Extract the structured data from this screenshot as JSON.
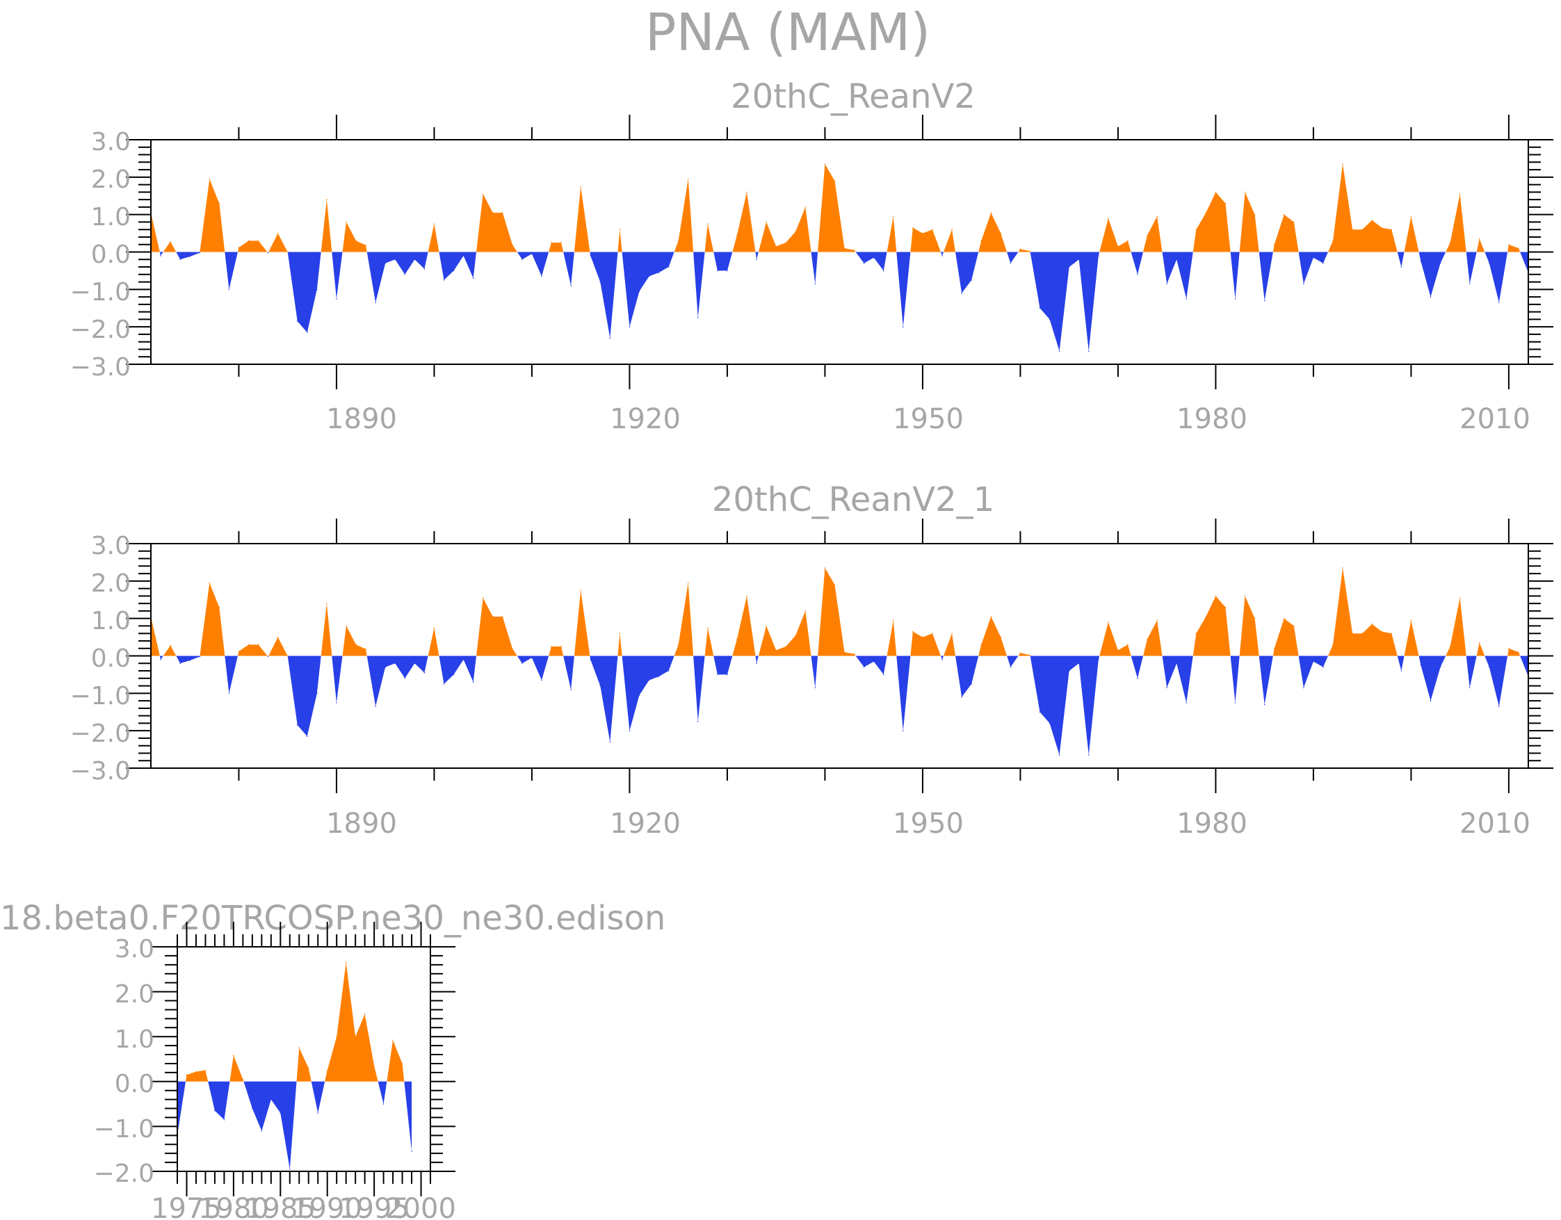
{
  "title": "PNA (MAM)",
  "colors": {
    "positive": "#ff8000",
    "negative": "#2840e8",
    "text": "#a6a6a6",
    "frame": "#000000"
  },
  "chart_data": [
    {
      "type": "area",
      "title": "20thC_ReanV2",
      "xlabel": "",
      "ylabel": "",
      "ylim": [
        -3.0,
        3.0
      ],
      "xlim": [
        1871,
        2012
      ],
      "xticks": [
        1890,
        1920,
        1950,
        1980,
        2010
      ],
      "xtick_labels": [
        "1890",
        "1920",
        "1950",
        "1980",
        "2010"
      ],
      "ytick_labels": [
        "3.0",
        "2.0",
        "1.0",
        "0.0",
        "−1.0",
        "−2.0",
        "−3.0"
      ],
      "start_year": 1871,
      "values": [
        1.05,
        -0.1,
        0.28,
        -0.2,
        -0.12,
        -0.02,
        1.95,
        1.3,
        -1.0,
        0.12,
        0.3,
        0.3,
        -0.02,
        0.5,
        0.0,
        -1.85,
        -2.15,
        -1.0,
        1.4,
        -1.25,
        0.8,
        0.3,
        0.18,
        -1.35,
        -0.3,
        -0.2,
        -0.6,
        -0.2,
        -0.45,
        0.75,
        -0.75,
        -0.5,
        -0.1,
        -0.7,
        1.55,
        1.05,
        1.05,
        0.2,
        -0.2,
        -0.05,
        -0.65,
        0.25,
        0.25,
        -0.9,
        1.75,
        -0.1,
        -0.8,
        -2.3,
        0.6,
        -2.0,
        -1.05,
        -0.65,
        -0.55,
        -0.4,
        0.3,
        1.95,
        -1.75,
        0.75,
        -0.5,
        -0.5,
        0.45,
        1.6,
        -0.2,
        0.8,
        0.15,
        0.25,
        0.55,
        1.2,
        -0.85,
        2.35,
        1.9,
        0.1,
        0.05,
        -0.3,
        -0.15,
        -0.5,
        0.95,
        -2.0,
        0.65,
        0.5,
        0.6,
        -0.1,
        0.6,
        -1.1,
        -0.75,
        0.3,
        1.05,
        0.5,
        -0.3,
        0.08,
        0.02,
        -1.5,
        -1.8,
        -2.65,
        -0.4,
        -0.2,
        -2.65,
        -0.1,
        0.9,
        0.15,
        0.3,
        -0.6,
        0.45,
        0.95,
        -0.85,
        -0.2,
        -1.25,
        0.6,
        1.05,
        1.6,
        1.3,
        -1.25,
        1.6,
        1.0,
        -1.3,
        0.2,
        1.0,
        0.8,
        -0.85,
        -0.15,
        -0.3,
        0.3,
        2.35,
        0.6,
        0.6,
        0.85,
        0.65,
        0.6,
        -0.4,
        0.95,
        -0.25,
        -1.2,
        -0.3,
        0.25,
        1.55,
        -0.85,
        0.35,
        -0.3,
        -1.35,
        0.2,
        0.1,
        -0.55
      ]
    },
    {
      "type": "area",
      "title": "20thC_ReanV2_1",
      "xlabel": "",
      "ylabel": "",
      "ylim": [
        -3.0,
        3.0
      ],
      "xlim": [
        1871,
        2012
      ],
      "xticks": [
        1890,
        1920,
        1950,
        1980,
        2010
      ],
      "xtick_labels": [
        "1890",
        "1920",
        "1950",
        "1980",
        "2010"
      ],
      "ytick_labels": [
        "3.0",
        "2.0",
        "1.0",
        "0.0",
        "−1.0",
        "−2.0",
        "−3.0"
      ],
      "start_year": 1871,
      "values": [
        1.05,
        -0.1,
        0.28,
        -0.2,
        -0.12,
        -0.02,
        1.95,
        1.3,
        -1.0,
        0.12,
        0.3,
        0.3,
        -0.02,
        0.5,
        0.0,
        -1.85,
        -2.15,
        -1.0,
        1.4,
        -1.25,
        0.8,
        0.3,
        0.18,
        -1.35,
        -0.3,
        -0.2,
        -0.6,
        -0.2,
        -0.45,
        0.75,
        -0.75,
        -0.5,
        -0.1,
        -0.7,
        1.55,
        1.05,
        1.05,
        0.2,
        -0.2,
        -0.05,
        -0.65,
        0.25,
        0.25,
        -0.9,
        1.75,
        -0.1,
        -0.8,
        -2.3,
        0.6,
        -2.0,
        -1.05,
        -0.65,
        -0.55,
        -0.4,
        0.3,
        1.95,
        -1.75,
        0.75,
        -0.5,
        -0.5,
        0.45,
        1.6,
        -0.2,
        0.8,
        0.15,
        0.25,
        0.55,
        1.2,
        -0.85,
        2.35,
        1.9,
        0.1,
        0.05,
        -0.3,
        -0.15,
        -0.5,
        0.95,
        -2.0,
        0.65,
        0.5,
        0.6,
        -0.1,
        0.6,
        -1.1,
        -0.75,
        0.3,
        1.05,
        0.5,
        -0.3,
        0.08,
        0.02,
        -1.5,
        -1.8,
        -2.65,
        -0.4,
        -0.2,
        -2.65,
        -0.1,
        0.9,
        0.15,
        0.3,
        -0.6,
        0.45,
        0.95,
        -0.85,
        -0.2,
        -1.25,
        0.6,
        1.05,
        1.6,
        1.3,
        -1.25,
        1.6,
        1.0,
        -1.3,
        0.2,
        1.0,
        0.8,
        -0.85,
        -0.15,
        -0.3,
        0.3,
        2.35,
        0.6,
        0.6,
        0.85,
        0.65,
        0.6,
        -0.4,
        0.95,
        -0.25,
        -1.2,
        -0.3,
        0.25,
        1.55,
        -0.85,
        0.35,
        -0.3,
        -1.35,
        0.2,
        0.1,
        -0.55
      ]
    },
    {
      "type": "area",
      "title": "18.beta0.F20TRCOSP.ne30_ne30.edison",
      "xlabel": "",
      "ylabel": "",
      "ylim": [
        -2.0,
        3.0
      ],
      "xlim": [
        1974,
        2001
      ],
      "xticks": [
        1975,
        1980,
        1985,
        1990,
        1995,
        2000
      ],
      "xtick_labels": [
        "1975",
        "1980",
        "1985",
        "1990",
        "1995",
        "2000"
      ],
      "ytick_labels": [
        "3.0",
        "2.0",
        "1.0",
        "0.0",
        "−1.0",
        "−2.0"
      ],
      "start_year": 1974,
      "values": [
        -1.2,
        0.15,
        0.22,
        0.25,
        -0.65,
        -0.85,
        0.58,
        0.05,
        -0.6,
        -1.1,
        -0.4,
        -0.7,
        -1.95,
        0.75,
        0.3,
        -0.7,
        0.25,
        1.0,
        2.65,
        1.0,
        1.5,
        0.35,
        -0.5,
        0.92,
        0.4,
        -1.55
      ]
    }
  ]
}
